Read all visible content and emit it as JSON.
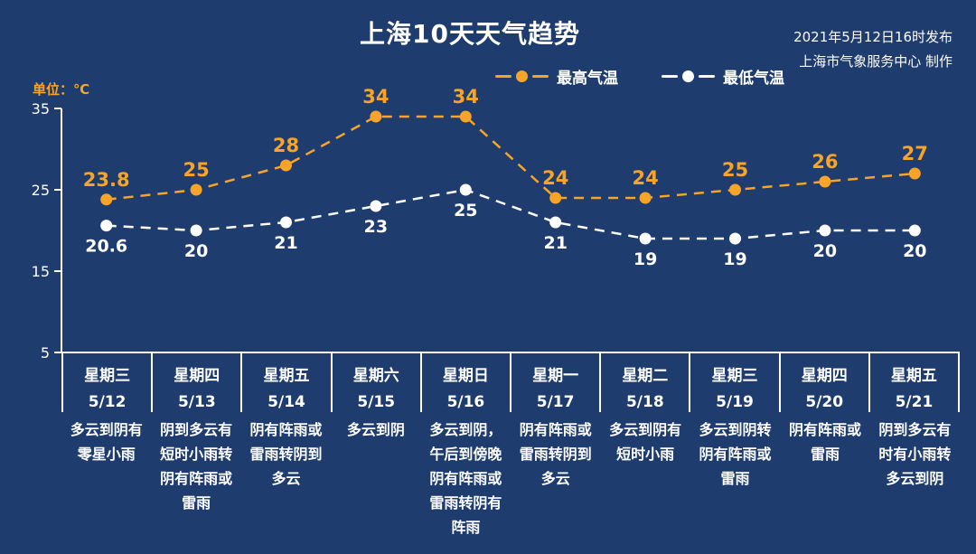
{
  "title": "上海10天天气趋势",
  "issued": {
    "line1": "2021年5月12日16时发布",
    "line2": "上海市气象服务中心 制作"
  },
  "unit_label": "单位：℃",
  "legend": {
    "max_label": "最高气温",
    "min_label": "最低气温"
  },
  "colors": {
    "background": "#1e3c6e",
    "accent_orange": "#f7a428",
    "min_line": "#ffffff",
    "text": "#ffffff"
  },
  "chart_data": {
    "type": "line",
    "title": "上海10天天气趋势",
    "ylabel": "单位：℃",
    "ylim": [
      5,
      35
    ],
    "yticks": [
      35,
      25,
      15,
      5
    ],
    "grid": false,
    "legend_position": "top",
    "line_style": "dashed",
    "categories": [
      {
        "weekday": "星期三",
        "date": "5/12",
        "weather": "多云到阴有零星小雨"
      },
      {
        "weekday": "星期四",
        "date": "5/13",
        "weather": "阴到多云有短时小雨转阴有阵雨或雷雨"
      },
      {
        "weekday": "星期五",
        "date": "5/14",
        "weather": "阴有阵雨或雷雨转阴到多云"
      },
      {
        "weekday": "星期六",
        "date": "5/15",
        "weather": "多云到阴"
      },
      {
        "weekday": "星期日",
        "date": "5/16",
        "weather": "多云到阴，午后到傍晚阴有阵雨或雷雨转阴有阵雨"
      },
      {
        "weekday": "星期一",
        "date": "5/17",
        "weather": "阴有阵雨或雷雨转阴到多云"
      },
      {
        "weekday": "星期二",
        "date": "5/18",
        "weather": "多云到阴有短时小雨"
      },
      {
        "weekday": "星期三",
        "date": "5/19",
        "weather": "多云到阴转阴有阵雨或雷雨"
      },
      {
        "weekday": "星期四",
        "date": "5/20",
        "weather": "阴有阵雨或雷雨"
      },
      {
        "weekday": "星期五",
        "date": "5/21",
        "weather": "阴到多云有时有小雨转多云到阴"
      }
    ],
    "series": [
      {
        "name": "最高气温",
        "color": "#f7a428",
        "values": [
          23.8,
          25,
          28,
          34,
          34,
          24,
          24,
          25,
          26,
          27
        ]
      },
      {
        "name": "最低气温",
        "color": "#ffffff",
        "values": [
          20.6,
          20,
          21,
          23,
          25,
          21,
          19,
          19,
          20,
          20
        ]
      }
    ]
  }
}
